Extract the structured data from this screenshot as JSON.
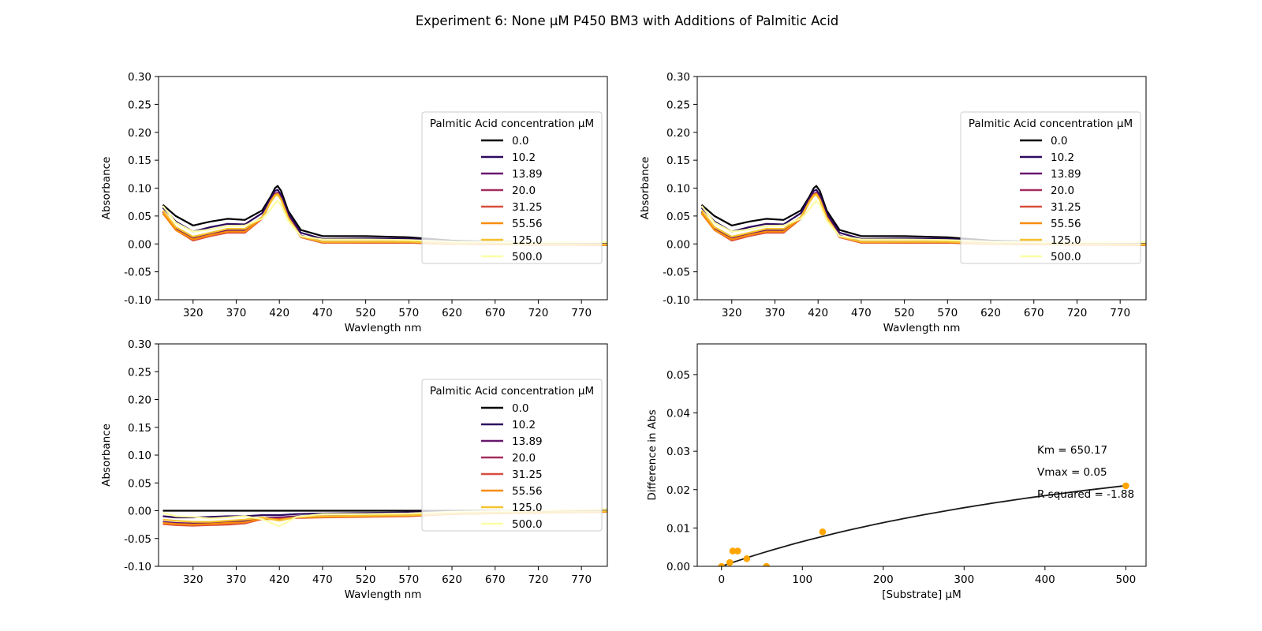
{
  "figure": {
    "title": "Experiment 6: None μM P450 BM3 with Additions of Palmitic Acid"
  },
  "legend": {
    "title": "Palmitic Acid concentration μM",
    "placement": "right"
  },
  "colors": {
    "series": [
      "#000004",
      "#2d0a5e",
      "#6a176e",
      "#a52c60",
      "#d94d3e",
      "#f98c0a",
      "#f6c22e",
      "#fcffa4"
    ],
    "fit_line": "#1a1a1a",
    "points": "#ffa500"
  },
  "chart_data": [
    {
      "type": "line",
      "panel": "top-left",
      "title": "",
      "xlabel": "Wavlength nm",
      "ylabel": "Absorbance",
      "xlim": [
        280,
        800
      ],
      "ylim": [
        -0.1,
        0.3
      ],
      "xticks": [
        320,
        370,
        420,
        470,
        520,
        570,
        620,
        670,
        720,
        770
      ],
      "yticks": [
        -0.1,
        -0.05,
        0.0,
        0.05,
        0.1,
        0.15,
        0.2,
        0.25,
        0.3
      ],
      "legend_title": "Palmitic Acid concentration μM",
      "x": [
        285,
        300,
        320,
        340,
        360,
        380,
        400,
        410,
        415,
        418,
        422,
        430,
        445,
        470,
        520,
        570,
        620,
        700,
        800
      ],
      "series": [
        {
          "name": "0.0",
          "values": [
            0.07,
            0.05,
            0.033,
            0.04,
            0.045,
            0.043,
            0.06,
            0.085,
            0.1,
            0.104,
            0.095,
            0.06,
            0.025,
            0.014,
            0.014,
            0.012,
            0.006,
            0.003,
            0.0
          ]
        },
        {
          "name": "10.2",
          "values": [
            0.065,
            0.04,
            0.022,
            0.03,
            0.036,
            0.035,
            0.055,
            0.082,
            0.095,
            0.097,
            0.088,
            0.055,
            0.02,
            0.009,
            0.01,
            0.009,
            0.004,
            0.002,
            0.0
          ]
        },
        {
          "name": "13.89",
          "values": [
            0.058,
            0.028,
            0.01,
            0.018,
            0.025,
            0.025,
            0.048,
            0.078,
            0.09,
            0.092,
            0.082,
            0.05,
            0.015,
            0.004,
            0.004,
            0.004,
            0.001,
            0.0,
            -0.001
          ]
        },
        {
          "name": "20.0",
          "values": [
            0.055,
            0.025,
            0.008,
            0.016,
            0.022,
            0.022,
            0.046,
            0.077,
            0.089,
            0.091,
            0.081,
            0.049,
            0.013,
            0.003,
            0.002,
            0.002,
            0.0,
            -0.001,
            -0.002
          ]
        },
        {
          "name": "31.25",
          "values": [
            0.055,
            0.025,
            0.006,
            0.014,
            0.02,
            0.02,
            0.045,
            0.076,
            0.088,
            0.09,
            0.08,
            0.048,
            0.012,
            0.002,
            0.002,
            0.002,
            0.0,
            -0.001,
            -0.002
          ]
        },
        {
          "name": "55.56",
          "values": [
            0.055,
            0.025,
            0.008,
            0.016,
            0.022,
            0.022,
            0.046,
            0.077,
            0.088,
            0.09,
            0.08,
            0.048,
            0.013,
            0.003,
            0.003,
            0.003,
            0.0,
            -0.001,
            -0.002
          ]
        },
        {
          "name": "125.0",
          "values": [
            0.06,
            0.03,
            0.013,
            0.02,
            0.027,
            0.027,
            0.048,
            0.075,
            0.086,
            0.088,
            0.079,
            0.047,
            0.013,
            0.004,
            0.004,
            0.004,
            0.001,
            0.0,
            -0.001
          ]
        },
        {
          "name": "500.0",
          "values": [
            0.068,
            0.038,
            0.022,
            0.026,
            0.032,
            0.033,
            0.045,
            0.062,
            0.073,
            0.077,
            0.07,
            0.042,
            0.014,
            0.008,
            0.008,
            0.007,
            0.004,
            0.003,
            0.003
          ]
        }
      ]
    },
    {
      "type": "line",
      "panel": "top-right",
      "title": "",
      "xlabel": "Wavlength nm",
      "ylabel": "Absorbance",
      "xlim": [
        280,
        800
      ],
      "ylim": [
        -0.1,
        0.3
      ],
      "xticks": [
        320,
        370,
        420,
        470,
        520,
        570,
        620,
        670,
        720,
        770
      ],
      "yticks": [
        -0.1,
        -0.05,
        0.0,
        0.05,
        0.1,
        0.15,
        0.2,
        0.25,
        0.3
      ],
      "legend_title": "Palmitic Acid concentration μM",
      "x": [
        285,
        300,
        320,
        340,
        360,
        380,
        400,
        410,
        415,
        418,
        422,
        430,
        445,
        470,
        520,
        570,
        620,
        700,
        800
      ],
      "series": [
        {
          "name": "0.0",
          "values": [
            0.07,
            0.05,
            0.033,
            0.04,
            0.045,
            0.043,
            0.06,
            0.085,
            0.1,
            0.104,
            0.095,
            0.06,
            0.025,
            0.014,
            0.014,
            0.012,
            0.006,
            0.003,
            0.0
          ]
        },
        {
          "name": "10.2",
          "values": [
            0.065,
            0.04,
            0.022,
            0.03,
            0.036,
            0.035,
            0.055,
            0.082,
            0.095,
            0.097,
            0.088,
            0.055,
            0.02,
            0.009,
            0.01,
            0.009,
            0.004,
            0.002,
            0.0
          ]
        },
        {
          "name": "13.89",
          "values": [
            0.058,
            0.028,
            0.01,
            0.018,
            0.025,
            0.025,
            0.048,
            0.078,
            0.09,
            0.092,
            0.082,
            0.05,
            0.015,
            0.004,
            0.004,
            0.004,
            0.001,
            0.0,
            -0.001
          ]
        },
        {
          "name": "20.0",
          "values": [
            0.055,
            0.025,
            0.008,
            0.016,
            0.022,
            0.022,
            0.046,
            0.077,
            0.089,
            0.091,
            0.081,
            0.049,
            0.013,
            0.003,
            0.002,
            0.002,
            0.0,
            -0.001,
            -0.002
          ]
        },
        {
          "name": "31.25",
          "values": [
            0.055,
            0.025,
            0.006,
            0.014,
            0.02,
            0.02,
            0.045,
            0.076,
            0.088,
            0.09,
            0.08,
            0.048,
            0.012,
            0.002,
            0.002,
            0.002,
            0.0,
            -0.001,
            -0.002
          ]
        },
        {
          "name": "55.56",
          "values": [
            0.055,
            0.025,
            0.008,
            0.016,
            0.022,
            0.022,
            0.046,
            0.077,
            0.088,
            0.09,
            0.08,
            0.048,
            0.013,
            0.003,
            0.003,
            0.003,
            0.0,
            -0.001,
            -0.002
          ]
        },
        {
          "name": "125.0",
          "values": [
            0.06,
            0.03,
            0.013,
            0.02,
            0.027,
            0.027,
            0.048,
            0.075,
            0.086,
            0.088,
            0.079,
            0.047,
            0.013,
            0.004,
            0.004,
            0.004,
            0.001,
            0.0,
            -0.001
          ]
        },
        {
          "name": "500.0",
          "values": [
            0.068,
            0.038,
            0.022,
            0.026,
            0.032,
            0.033,
            0.045,
            0.062,
            0.073,
            0.077,
            0.07,
            0.042,
            0.014,
            0.008,
            0.008,
            0.007,
            0.004,
            0.003,
            0.003
          ]
        }
      ]
    },
    {
      "type": "line",
      "panel": "bottom-left",
      "title": "",
      "xlabel": "Wavlength nm",
      "ylabel": "Absorbance",
      "xlim": [
        280,
        800
      ],
      "ylim": [
        -0.1,
        0.3
      ],
      "xticks": [
        320,
        370,
        420,
        470,
        520,
        570,
        620,
        670,
        720,
        770
      ],
      "yticks": [
        -0.1,
        -0.05,
        0.0,
        0.05,
        0.1,
        0.15,
        0.2,
        0.25,
        0.3
      ],
      "legend_title": "Palmitic Acid concentration μM",
      "x": [
        285,
        300,
        320,
        340,
        360,
        380,
        400,
        420,
        440,
        470,
        520,
        570,
        620,
        700,
        800
      ],
      "series": [
        {
          "name": "0.0",
          "values": [
            0.0,
            0.0,
            0.0,
            0.0,
            0.0,
            0.0,
            0.0,
            0.0,
            0.0,
            0.0,
            0.0,
            0.0,
            0.0,
            0.0,
            0.0
          ]
        },
        {
          "name": "10.2",
          "values": [
            -0.01,
            -0.012,
            -0.012,
            -0.011,
            -0.01,
            -0.01,
            -0.008,
            -0.008,
            -0.006,
            -0.005,
            -0.004,
            -0.003,
            -0.002,
            -0.001,
            0.0
          ]
        },
        {
          "name": "13.89",
          "values": [
            -0.02,
            -0.022,
            -0.023,
            -0.022,
            -0.02,
            -0.018,
            -0.013,
            -0.012,
            -0.01,
            -0.01,
            -0.009,
            -0.008,
            -0.005,
            -0.003,
            -0.001
          ]
        },
        {
          "name": "20.0",
          "values": [
            -0.022,
            -0.024,
            -0.025,
            -0.024,
            -0.022,
            -0.021,
            -0.014,
            -0.014,
            -0.012,
            -0.011,
            -0.01,
            -0.009,
            -0.006,
            -0.004,
            -0.002
          ]
        },
        {
          "name": "31.25",
          "values": [
            -0.024,
            -0.026,
            -0.027,
            -0.026,
            -0.025,
            -0.023,
            -0.015,
            -0.015,
            -0.013,
            -0.012,
            -0.011,
            -0.01,
            -0.006,
            -0.004,
            -0.002
          ]
        },
        {
          "name": "55.56",
          "values": [
            -0.022,
            -0.024,
            -0.025,
            -0.024,
            -0.022,
            -0.021,
            -0.014,
            -0.016,
            -0.012,
            -0.011,
            -0.01,
            -0.009,
            -0.006,
            -0.004,
            -0.002
          ]
        },
        {
          "name": "125.0",
          "values": [
            -0.016,
            -0.018,
            -0.02,
            -0.02,
            -0.018,
            -0.016,
            -0.012,
            -0.018,
            -0.011,
            -0.01,
            -0.009,
            -0.008,
            -0.005,
            -0.003,
            -0.001
          ]
        },
        {
          "name": "500.0",
          "values": [
            -0.004,
            -0.01,
            -0.011,
            -0.014,
            -0.012,
            -0.01,
            -0.015,
            -0.028,
            -0.011,
            -0.006,
            -0.006,
            -0.005,
            -0.002,
            0.0,
            0.003
          ]
        }
      ]
    },
    {
      "type": "scatter",
      "panel": "bottom-right",
      "title": "",
      "xlabel": "[Substrate] μM",
      "ylabel": "Difference in Abs",
      "xlim": [
        -30,
        525
      ],
      "ylim": [
        0.0,
        0.058
      ],
      "xticks": [
        0,
        100,
        200,
        300,
        400,
        500
      ],
      "yticks": [
        0.0,
        0.01,
        0.02,
        0.03,
        0.04,
        0.05
      ],
      "points": [
        {
          "x": 0.0,
          "y": 0.0
        },
        {
          "x": 10.2,
          "y": 0.001
        },
        {
          "x": 13.89,
          "y": 0.004
        },
        {
          "x": 20.0,
          "y": 0.004
        },
        {
          "x": 31.25,
          "y": 0.002
        },
        {
          "x": 55.56,
          "y": 0.0
        },
        {
          "x": 125.0,
          "y": 0.009
        },
        {
          "x": 500.0,
          "y": 0.021
        }
      ],
      "fit": {
        "km": 650.17,
        "vmax": 0.0484,
        "x_range": [
          0,
          500
        ]
      },
      "annotations": [
        "Km = 650.17",
        "Vmax = 0.05",
        "R squared = -1.88"
      ]
    }
  ]
}
